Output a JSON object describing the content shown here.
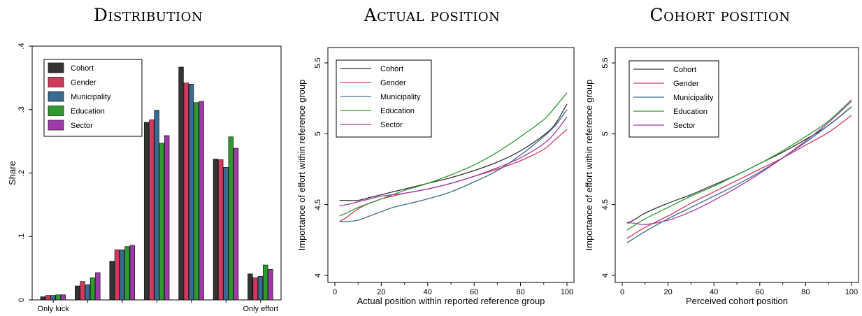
{
  "panel_titles": [
    "Distribution",
    "Actual position",
    "Cohort position"
  ],
  "colors": {
    "Cohort": "#333333",
    "Gender": "#d13a5c",
    "Municipality": "#3a6a8f",
    "Education": "#2e9a2e",
    "Sector": "#a03aa8"
  },
  "chart_data": [
    {
      "type": "bar",
      "title": "Distribution",
      "xlabel": "",
      "ylabel": "Share",
      "ylim": [
        0,
        0.4
      ],
      "yticks": [
        0,
        0.1,
        0.2,
        0.3,
        0.4
      ],
      "ytick_labels": [
        "0",
        ".1",
        ".2",
        ".3",
        ".4"
      ],
      "categories": [
        "Only luck",
        "",
        "",
        "",
        "",
        "",
        "Only effort"
      ],
      "legend": "top-left",
      "grid": false,
      "series": [
        {
          "name": "Cohort",
          "values": [
            0.005,
            0.022,
            0.061,
            0.28,
            0.367,
            0.222,
            0.041
          ]
        },
        {
          "name": "Gender",
          "values": [
            0.007,
            0.029,
            0.079,
            0.284,
            0.342,
            0.221,
            0.035
          ]
        },
        {
          "name": "Municipality",
          "values": [
            0.007,
            0.024,
            0.079,
            0.299,
            0.34,
            0.209,
            0.037
          ]
        },
        {
          "name": "Education",
          "values": [
            0.008,
            0.035,
            0.084,
            0.247,
            0.311,
            0.257,
            0.055
          ]
        },
        {
          "name": "Sector",
          "values": [
            0.008,
            0.043,
            0.086,
            0.259,
            0.313,
            0.239,
            0.048
          ]
        }
      ]
    },
    {
      "type": "line",
      "title": "Actual position",
      "xlabel": "Actual position within reported reference group",
      "ylabel": "Importance of effort within reference group",
      "xlim": [
        0,
        100
      ],
      "ylim": [
        4,
        5.5
      ],
      "xticks": [
        0,
        20,
        40,
        60,
        80,
        100
      ],
      "yticks": [
        4,
        4.5,
        5,
        5.5
      ],
      "ytick_labels": [
        "4",
        "4.5",
        "5",
        "5.5"
      ],
      "legend": "top-left",
      "grid": false,
      "series": [
        {
          "name": "Cohort",
          "x": [
            2,
            5,
            10,
            15,
            20,
            25,
            30,
            40,
            50,
            60,
            70,
            80,
            90,
            95,
            100
          ],
          "y": [
            4.53,
            4.53,
            4.53,
            4.55,
            4.57,
            4.59,
            4.61,
            4.65,
            4.69,
            4.74,
            4.8,
            4.88,
            4.99,
            5.07,
            5.21
          ]
        },
        {
          "name": "Gender",
          "x": [
            2,
            5,
            10,
            15,
            20,
            25,
            30,
            40,
            50,
            60,
            70,
            80,
            90,
            95,
            100
          ],
          "y": [
            4.38,
            4.41,
            4.47,
            4.51,
            4.54,
            4.56,
            4.58,
            4.61,
            4.65,
            4.7,
            4.75,
            4.81,
            4.89,
            4.96,
            5.03
          ]
        },
        {
          "name": "Municipality",
          "x": [
            2,
            5,
            10,
            15,
            20,
            25,
            30,
            40,
            50,
            60,
            70,
            80,
            90,
            95,
            100
          ],
          "y": [
            4.38,
            4.38,
            4.39,
            4.42,
            4.45,
            4.48,
            4.5,
            4.54,
            4.59,
            4.66,
            4.74,
            4.85,
            4.98,
            5.06,
            5.17
          ]
        },
        {
          "name": "Education",
          "x": [
            2,
            5,
            10,
            15,
            20,
            25,
            30,
            40,
            50,
            60,
            70,
            80,
            90,
            95,
            100
          ],
          "y": [
            4.42,
            4.44,
            4.48,
            4.51,
            4.54,
            4.57,
            4.6,
            4.65,
            4.71,
            4.78,
            4.87,
            4.98,
            5.1,
            5.19,
            5.29
          ]
        },
        {
          "name": "Sector",
          "x": [
            2,
            5,
            10,
            15,
            20,
            25,
            30,
            40,
            50,
            60,
            70,
            80,
            90,
            95,
            100
          ],
          "y": [
            4.49,
            4.5,
            4.52,
            4.54,
            4.56,
            4.57,
            4.58,
            4.61,
            4.65,
            4.7,
            4.76,
            4.83,
            4.93,
            5.01,
            5.12
          ]
        }
      ]
    },
    {
      "type": "line",
      "title": "Cohort position",
      "xlabel": "Perceived cohort position",
      "ylabel": "Importance of effort within reference group",
      "xlim": [
        0,
        100
      ],
      "ylim": [
        4,
        5.5
      ],
      "xticks": [
        0,
        20,
        40,
        60,
        80,
        100
      ],
      "yticks": [
        4,
        4.5,
        5,
        5.5
      ],
      "ytick_labels": [
        "4",
        "4.5",
        "5",
        "5.5"
      ],
      "legend": "top-left",
      "grid": false,
      "series": [
        {
          "name": "Cohort",
          "x": [
            2,
            5,
            10,
            20,
            30,
            40,
            50,
            60,
            70,
            80,
            90,
            100
          ],
          "y": [
            4.37,
            4.39,
            4.44,
            4.51,
            4.57,
            4.64,
            4.71,
            4.79,
            4.87,
            4.96,
            5.06,
            5.19
          ]
        },
        {
          "name": "Gender",
          "x": [
            2,
            5,
            10,
            20,
            30,
            40,
            50,
            60,
            70,
            80,
            90,
            100
          ],
          "y": [
            4.26,
            4.29,
            4.34,
            4.42,
            4.51,
            4.59,
            4.67,
            4.75,
            4.83,
            4.92,
            5.01,
            5.13
          ]
        },
        {
          "name": "Municipality",
          "x": [
            2,
            5,
            10,
            20,
            30,
            40,
            50,
            60,
            70,
            80,
            90,
            100
          ],
          "y": [
            4.23,
            4.26,
            4.31,
            4.4,
            4.48,
            4.56,
            4.64,
            4.73,
            4.83,
            4.94,
            5.06,
            5.19
          ]
        },
        {
          "name": "Education",
          "x": [
            2,
            5,
            10,
            20,
            30,
            40,
            50,
            60,
            70,
            80,
            90,
            100
          ],
          "y": [
            4.32,
            4.35,
            4.4,
            4.48,
            4.56,
            4.63,
            4.71,
            4.79,
            4.88,
            4.98,
            5.09,
            5.24
          ]
        },
        {
          "name": "Sector",
          "x": [
            2,
            5,
            10,
            20,
            30,
            40,
            50,
            60,
            70,
            80,
            90,
            100
          ],
          "y": [
            4.37,
            4.37,
            4.36,
            4.39,
            4.45,
            4.53,
            4.62,
            4.72,
            4.83,
            4.95,
            5.08,
            5.23
          ]
        }
      ]
    }
  ]
}
